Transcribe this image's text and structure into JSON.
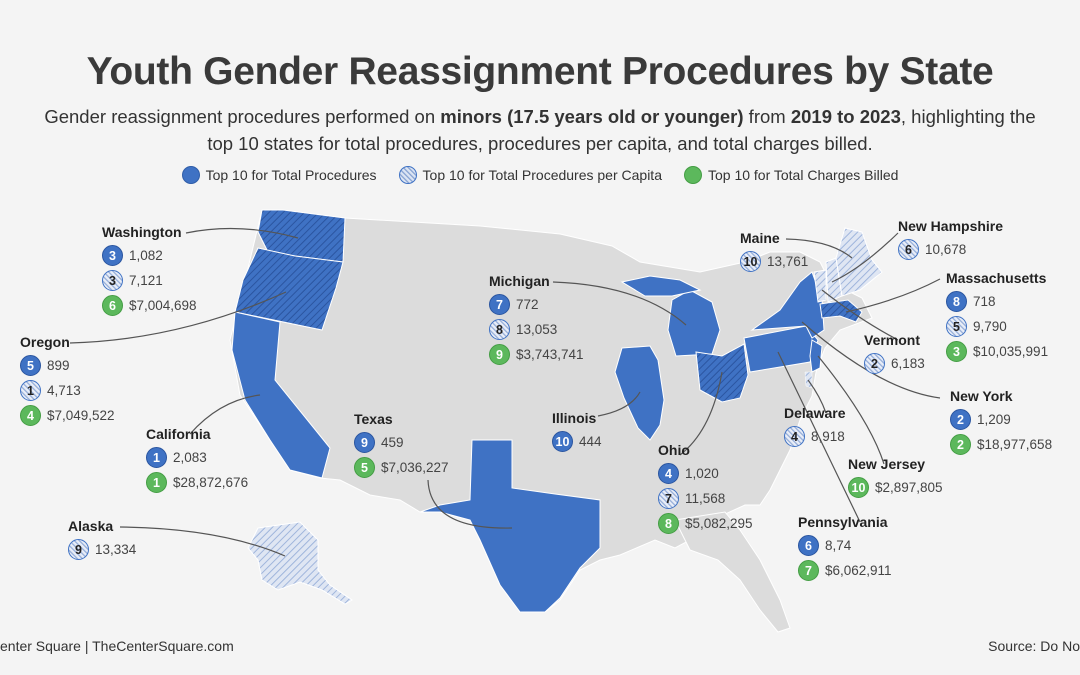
{
  "title": "Youth Gender Reassignment Procedures by State",
  "subtitle": {
    "t1": "Gender reassignment procedures performed on ",
    "b1": "minors (17.5 years old or younger)",
    "t2": " from ",
    "b2": "2019 to 2023",
    "t3": ", highlighting the",
    "line2": "top 10 states for total procedures, procedures per capita, and total charges billed."
  },
  "legend": {
    "total": "Top 10 for Total Procedures",
    "capita": "Top 10 for Total Procedures per Capita",
    "charges": "Top 10 for Total Charges Billed"
  },
  "states": {
    "washington": {
      "name": "Washington",
      "r1b": "3",
      "r1v": "1,082",
      "r2b": "3",
      "r2v": "7,121",
      "r3b": "6",
      "r3v": "$7,004,698"
    },
    "oregon": {
      "name": "Oregon",
      "r1b": "5",
      "r1v": "899",
      "r2b": "1",
      "r2v": "4,713",
      "r3b": "4",
      "r3v": "$7,049,522"
    },
    "california": {
      "name": "California",
      "r1b": "1",
      "r1v": "2,083",
      "r3b": "1",
      "r3v": "$28,872,676"
    },
    "alaska": {
      "name": "Alaska",
      "r2b": "9",
      "r2v": "13,334"
    },
    "texas": {
      "name": "Texas",
      "r1b": "9",
      "r1v": "459",
      "r3b": "5",
      "r3v": "$7,036,227"
    },
    "michigan": {
      "name": "Michigan",
      "r1b": "7",
      "r1v": "772",
      "r2b": "8",
      "r2v": "13,053",
      "r3b": "9",
      "r3v": "$3,743,741"
    },
    "illinois": {
      "name": "Illinois",
      "r1b": "10",
      "r1v": "444"
    },
    "ohio": {
      "name": "Ohio",
      "r1b": "4",
      "r1v": "1,020",
      "r2b": "7",
      "r2v": "11,568",
      "r3b": "8",
      "r3v": "$5,082,295"
    },
    "maine": {
      "name": "Maine",
      "r2b": "10",
      "r2v": "13,761"
    },
    "new_hampshire": {
      "name": "New Hampshire",
      "r2b": "6",
      "r2v": "10,678"
    },
    "massachusetts": {
      "name": "Massachusetts",
      "r1b": "8",
      "r1v": "718",
      "r2b": "5",
      "r2v": "9,790",
      "r3b": "3",
      "r3v": "$10,035,991"
    },
    "vermont": {
      "name": "Vermont",
      "r2b": "2",
      "r2v": "6,183"
    },
    "new_york": {
      "name": "New York",
      "r1b": "2",
      "r1v": "1,209",
      "r3b": "2",
      "r3v": "$18,977,658"
    },
    "delaware": {
      "name": "Delaware",
      "r2b": "4",
      "r2v": "8,918"
    },
    "new_jersey": {
      "name": "New Jersey",
      "r3b": "10",
      "r3v": "$2,897,805"
    },
    "pennsylvania": {
      "name": "Pennsylvania",
      "r1b": "6",
      "r1v": "8,74",
      "r3b": "7",
      "r3v": "$6,062,911"
    }
  },
  "footer": {
    "left": "enter Square | TheCenterSquare.com",
    "right": "Source: Do No"
  },
  "colors": {
    "solid": "#3f72c4",
    "hatch": "#9fb5dc",
    "green": "#5cb85c",
    "land": "#dcdcdc"
  }
}
